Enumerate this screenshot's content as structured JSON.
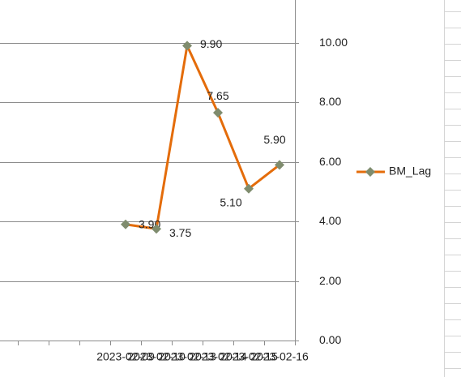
{
  "chart_data": {
    "type": "line",
    "categories": [
      null,
      null,
      null,
      null,
      "2023-02-09",
      "2023-02-10",
      "2023-02-13",
      "2023-02-14",
      "2023-02-15",
      "2023-02-16"
    ],
    "series": [
      {
        "name": "BM_Lag",
        "color": "#e46c0a",
        "marker_color": "#7f8c6e",
        "values": [
          null,
          null,
          null,
          null,
          3.9,
          3.75,
          9.9,
          7.65,
          5.1,
          5.9
        ],
        "value_labels": [
          null,
          null,
          null,
          null,
          "3.90",
          "3.75",
          "9.90",
          "7.65",
          "5.10",
          "5.90"
        ]
      }
    ],
    "ylim": [
      0,
      11.3
    ],
    "yticks": [
      {
        "value": 0,
        "label": "0.00"
      },
      {
        "value": 2,
        "label": "2.00"
      },
      {
        "value": 4,
        "label": "4.00"
      },
      {
        "value": 6,
        "label": "6.00"
      },
      {
        "value": 8,
        "label": "8.00"
      },
      {
        "value": 10,
        "label": "10.00"
      }
    ],
    "grid": true,
    "legend": "right"
  }
}
